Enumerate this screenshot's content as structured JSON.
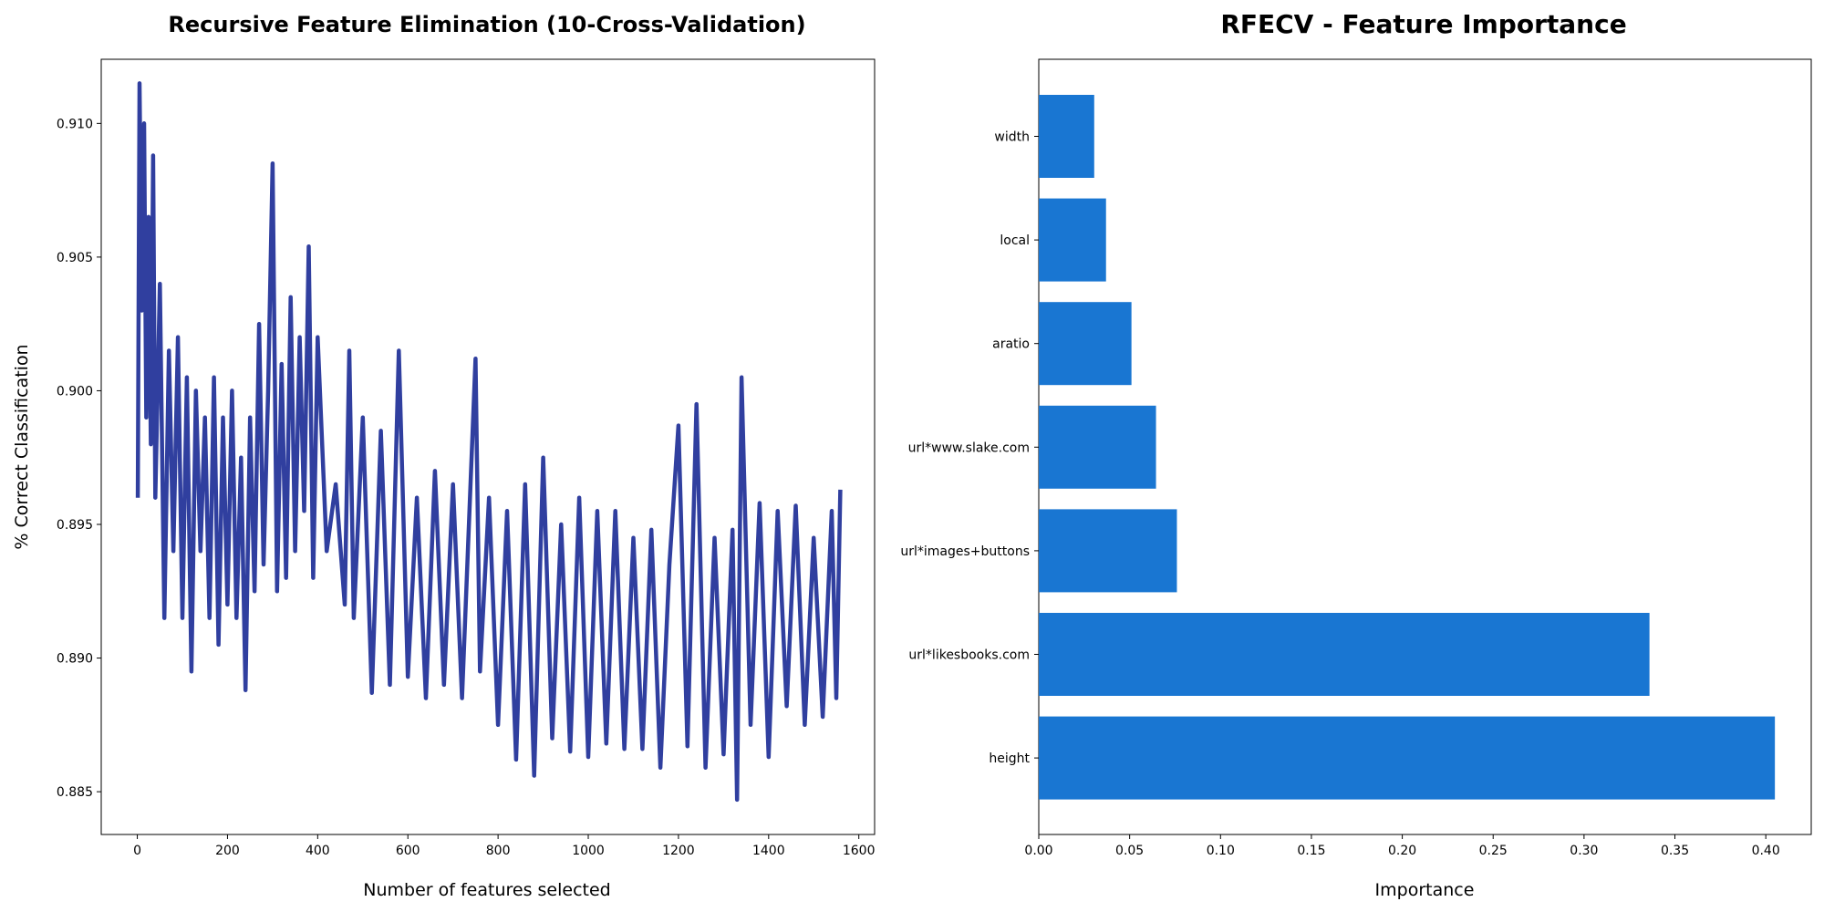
{
  "chart_data": [
    {
      "type": "line",
      "title": "Recursive Feature Elimination (10-Cross-Validation)",
      "xlabel": "Number of features selected",
      "ylabel": "% Correct Classification",
      "xlim": [
        -80,
        1635
      ],
      "ylim": [
        0.8834,
        0.9124
      ],
      "xticks": [
        0,
        200,
        400,
        600,
        800,
        1000,
        1200,
        1400,
        1600
      ],
      "yticks": [
        0.885,
        0.89,
        0.895,
        0.9,
        0.905,
        0.91
      ],
      "ytick_labels": [
        "0.885",
        "0.890",
        "0.895",
        "0.900",
        "0.905",
        "0.910"
      ],
      "color": "#303f9f",
      "series": [
        {
          "x": [
            1,
            5,
            10,
            15,
            20,
            25,
            30,
            35,
            40,
            50,
            60,
            70,
            80,
            90,
            100,
            110,
            120,
            130,
            140,
            150,
            160,
            170,
            180,
            190,
            200,
            210,
            220,
            230,
            240,
            250,
            260,
            270,
            280,
            290,
            300,
            310,
            320,
            330,
            340,
            350,
            360,
            370,
            380,
            390,
            400,
            420,
            440,
            460,
            470,
            480,
            500,
            520,
            540,
            560,
            580,
            600,
            620,
            640,
            660,
            680,
            700,
            720,
            740,
            750,
            760,
            780,
            800,
            820,
            840,
            860,
            880,
            900,
            920,
            940,
            960,
            980,
            1000,
            1020,
            1040,
            1060,
            1080,
            1100,
            1120,
            1140,
            1160,
            1180,
            1200,
            1220,
            1240,
            1260,
            1280,
            1300,
            1320,
            1330,
            1340,
            1360,
            1380,
            1400,
            1420,
            1440,
            1460,
            1480,
            1500,
            1520,
            1540,
            1550,
            1559
          ],
          "y": [
            0.896,
            0.9115,
            0.903,
            0.91,
            0.899,
            0.9065,
            0.898,
            0.9088,
            0.896,
            0.904,
            0.8915,
            0.9015,
            0.894,
            0.902,
            0.8915,
            0.9005,
            0.8895,
            0.9,
            0.894,
            0.899,
            0.8915,
            0.9005,
            0.8905,
            0.899,
            0.892,
            0.9,
            0.8915,
            0.8975,
            0.8888,
            0.899,
            0.8925,
            0.9025,
            0.8935,
            0.9,
            0.9085,
            0.8925,
            0.901,
            0.893,
            0.9035,
            0.894,
            0.902,
            0.8955,
            0.9054,
            0.893,
            0.902,
            0.894,
            0.8965,
            0.892,
            0.9015,
            0.8915,
            0.899,
            0.8887,
            0.8985,
            0.889,
            0.9015,
            0.8893,
            0.896,
            0.8885,
            0.897,
            0.889,
            0.8965,
            0.8885,
            0.897,
            0.9012,
            0.8895,
            0.896,
            0.8875,
            0.8955,
            0.8862,
            0.8965,
            0.8856,
            0.8975,
            0.887,
            0.895,
            0.8865,
            0.896,
            0.8863,
            0.8955,
            0.8868,
            0.8955,
            0.8866,
            0.8945,
            0.8866,
            0.8948,
            0.8859,
            0.8935,
            0.8987,
            0.8867,
            0.8995,
            0.8859,
            0.8945,
            0.8864,
            0.8948,
            0.8847,
            0.9005,
            0.8875,
            0.8958,
            0.8863,
            0.8955,
            0.8882,
            0.8957,
            0.8875,
            0.8945,
            0.8878,
            0.8955,
            0.8885,
            0.8963
          ]
        }
      ]
    },
    {
      "type": "bar",
      "orientation": "horizontal",
      "title": "RFECV - Feature Importance",
      "xlabel": "Importance",
      "ylabel": "",
      "xlim": [
        0,
        0.425
      ],
      "xticks": [
        0.0,
        0.05,
        0.1,
        0.15,
        0.2,
        0.25,
        0.3,
        0.35,
        0.4
      ],
      "xtick_labels": [
        "0.00",
        "0.05",
        "0.10",
        "0.15",
        "0.20",
        "0.25",
        "0.30",
        "0.35",
        "0.40"
      ],
      "color": "#1976d2",
      "categories": [
        "width",
        "local",
        "aratio",
        "url*www.slake.com",
        "url*images+buttons",
        "url*likesbooks.com",
        "height"
      ],
      "values": [
        0.0305,
        0.037,
        0.051,
        0.0645,
        0.076,
        0.336,
        0.405
      ]
    }
  ]
}
